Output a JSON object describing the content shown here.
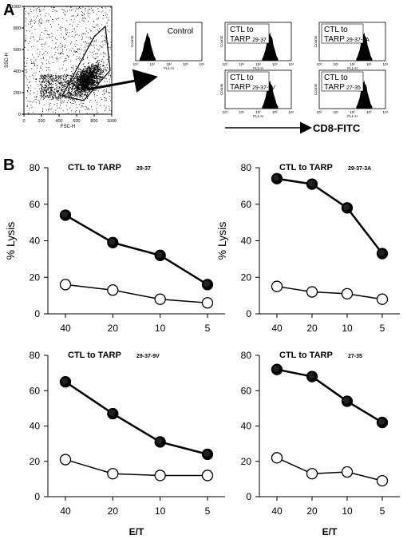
{
  "panel_a": {
    "letter": "A",
    "scatter": {
      "ylabel": "SSC-H",
      "xlabel": "FSC-H",
      "x_ticks": [
        "0",
        "200",
        "400",
        "600",
        "800",
        "1000"
      ],
      "y_ticks": [
        "0",
        "200",
        "400",
        "600",
        "800",
        "1000"
      ]
    },
    "histograms": [
      {
        "label": "Control",
        "sub": ""
      },
      {
        "label": "CTL to",
        "label2": "TARP",
        "sub": "29-37"
      },
      {
        "label": "CTL to",
        "label2": "TARP",
        "sub": "29-37-3A"
      },
      {
        "label": "CTL to",
        "label2": "TARP",
        "sub": "29-37-9V"
      },
      {
        "label": "CTL to",
        "label2": "TARP",
        "sub": "27-35"
      }
    ],
    "hist_ylabel": "Counts",
    "hist_xlabel": "FL1-H",
    "hist_ticks": [
      "10⁰",
      "10¹",
      "10²",
      "10³",
      "10⁴"
    ],
    "axis_arrow_label": "CD8-FITC"
  },
  "panel_b": {
    "letter": "B",
    "ylabel": "% Lysis",
    "xlabel": "E/T"
  },
  "chart_data": [
    {
      "type": "line",
      "title": "CTL to TARP",
      "title_sub": "29-37",
      "categories": [
        "40",
        "20",
        "10",
        "5"
      ],
      "ylim": [
        0,
        80
      ],
      "yticks": [
        0,
        20,
        40,
        60,
        80
      ],
      "series": [
        {
          "marker": "filled",
          "values": [
            54,
            39,
            32,
            16
          ]
        },
        {
          "marker": "open",
          "values": [
            16,
            13,
            8,
            6
          ]
        }
      ]
    },
    {
      "type": "line",
      "title": "CTL to TARP",
      "title_sub": "29-37-3A",
      "categories": [
        "40",
        "20",
        "10",
        "5"
      ],
      "ylim": [
        0,
        80
      ],
      "yticks": [
        0,
        20,
        40,
        60,
        80
      ],
      "series": [
        {
          "marker": "filled",
          "values": [
            74,
            71,
            58,
            33
          ]
        },
        {
          "marker": "open",
          "values": [
            15,
            12,
            11,
            8
          ]
        }
      ]
    },
    {
      "type": "line",
      "title": "CTL to TARP",
      "title_sub": "29-37-9V",
      "categories": [
        "40",
        "20",
        "10",
        "5"
      ],
      "ylim": [
        0,
        80
      ],
      "yticks": [
        0,
        20,
        40,
        60,
        80
      ],
      "series": [
        {
          "marker": "filled",
          "values": [
            65,
            47,
            31,
            24
          ]
        },
        {
          "marker": "open",
          "values": [
            21,
            13,
            12,
            12
          ]
        }
      ]
    },
    {
      "type": "line",
      "title": "CTL to TARP",
      "title_sub": "27-35",
      "categories": [
        "40",
        "20",
        "10",
        "5"
      ],
      "ylim": [
        0,
        80
      ],
      "yticks": [
        0,
        20,
        40,
        60,
        80
      ],
      "series": [
        {
          "marker": "filled",
          "values": [
            72,
            68,
            54,
            42
          ]
        },
        {
          "marker": "open",
          "values": [
            22,
            13,
            14,
            9
          ]
        }
      ]
    }
  ]
}
